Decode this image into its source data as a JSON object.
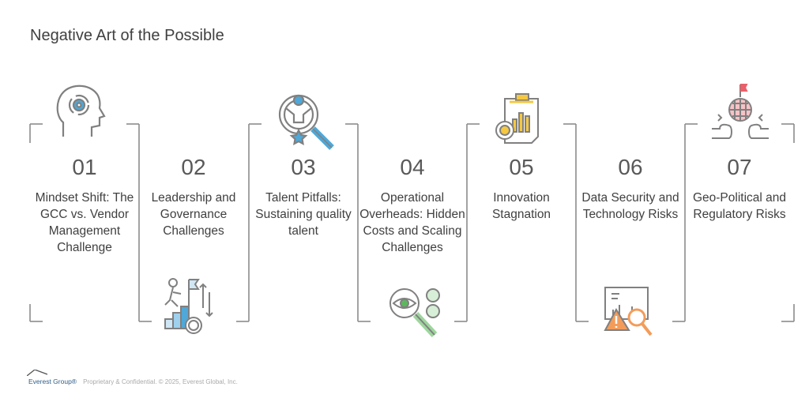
{
  "title": "Negative Art of the Possible",
  "items": [
    {
      "number": "01",
      "label": "Mindset Shift: The GCC vs. Vendor Management Challenge",
      "icon": "head-gear-icon"
    },
    {
      "number": "02",
      "label": "Leadership and Governance Challenges",
      "icon": "climb-flag-growth-icon"
    },
    {
      "number": "03",
      "label": "Talent Pitfalls: Sustaining quality talent",
      "icon": "talent-search-icon"
    },
    {
      "number": "04",
      "label": "Operational Overheads: Hidden Costs and Scaling Challenges",
      "icon": "eye-magnifier-dollar-icon"
    },
    {
      "number": "05",
      "label": "Innovation Stagnation",
      "icon": "clipboard-chart-bulb-icon"
    },
    {
      "number": "06",
      "label": "Data Security and Technology Risks",
      "icon": "warning-chart-magnifier-icon"
    },
    {
      "number": "07",
      "label": "Geo-Political and Regulatory Risks",
      "icon": "globe-fists-flag-icon"
    }
  ],
  "colors": {
    "line": "#8c8c8c",
    "blue": "#4fa8d8",
    "green": "#5cb85c",
    "yellow": "#f5c842",
    "orange": "#f39c5a",
    "red": "#e8606a"
  },
  "footer": {
    "logo": "Everest Group®",
    "text": "Proprietary & Confidential. © 2025, Everest Global, Inc."
  }
}
